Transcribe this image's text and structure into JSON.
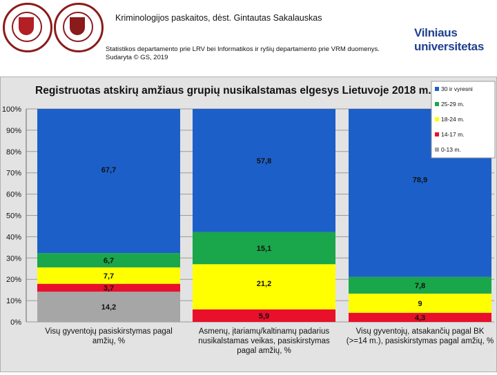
{
  "header": {
    "title": "Kriminologijos paskaitos, dėst. Gintautas Sakalauskas",
    "source_line1": "Statistikos departamento prie LRV bei Informatikos ir ryšių departamento prie VRM duomenys.",
    "source_line2": "Sudaryta © GS, 2019",
    "logo_line1": "Vilniaus",
    "logo_line2": "universitetas"
  },
  "colors": {
    "c30plus": "#1c5fc8",
    "c25_29": "#1aa64a",
    "c18_24": "#ffff00",
    "c14_17": "#e8102a",
    "c0_13": "#a6a6a6"
  },
  "chart_data": {
    "type": "bar",
    "stacked": true,
    "title": "Registruotas atskirų amžiaus grupių  nusikalstamas elgesys Lietuvoje 2018 m.",
    "ylim": [
      0,
      100
    ],
    "ytick_labels": [
      "0%",
      "10%",
      "20%",
      "30%",
      "40%",
      "50%",
      "60%",
      "70%",
      "80%",
      "90%",
      "100%"
    ],
    "categories": [
      [
        "Visų gyventojų pasiskirstymas pagal",
        "amžių, %"
      ],
      [
        "Asmenų, įtariamų/kaltinamų padarius",
        "nusikalstamas veikas, pasiskirstymas",
        "pagal amžių, %"
      ],
      [
        "Visų gyventojų, atsakančių pagal BK",
        "(>=14 m.), pasiskirstymas pagal amžių, %"
      ]
    ],
    "series": [
      {
        "name": "0-13 m.",
        "color_key": "c0_13",
        "values": [
          14.2,
          0,
          0
        ],
        "labels": [
          "14,2",
          "",
          ""
        ]
      },
      {
        "name": "14-17 m.",
        "color_key": "c14_17",
        "values": [
          3.7,
          5.9,
          4.3
        ],
        "labels": [
          "3,7",
          "5,9",
          "4,3"
        ]
      },
      {
        "name": "18-24 m.",
        "color_key": "c18_24",
        "values": [
          7.7,
          21.2,
          9
        ],
        "labels": [
          "7,7",
          "21,2",
          "9"
        ]
      },
      {
        "name": "25-29 m.",
        "color_key": "c25_29",
        "values": [
          6.7,
          15.1,
          7.8
        ],
        "labels": [
          "6,7",
          "15,1",
          "7,8"
        ]
      },
      {
        "name": "30 ir vyresni",
        "color_key": "c30plus",
        "values": [
          67.7,
          57.8,
          78.9
        ],
        "labels": [
          "67,7",
          "57,8",
          "78,9"
        ]
      }
    ],
    "legend_position": "top-right"
  }
}
